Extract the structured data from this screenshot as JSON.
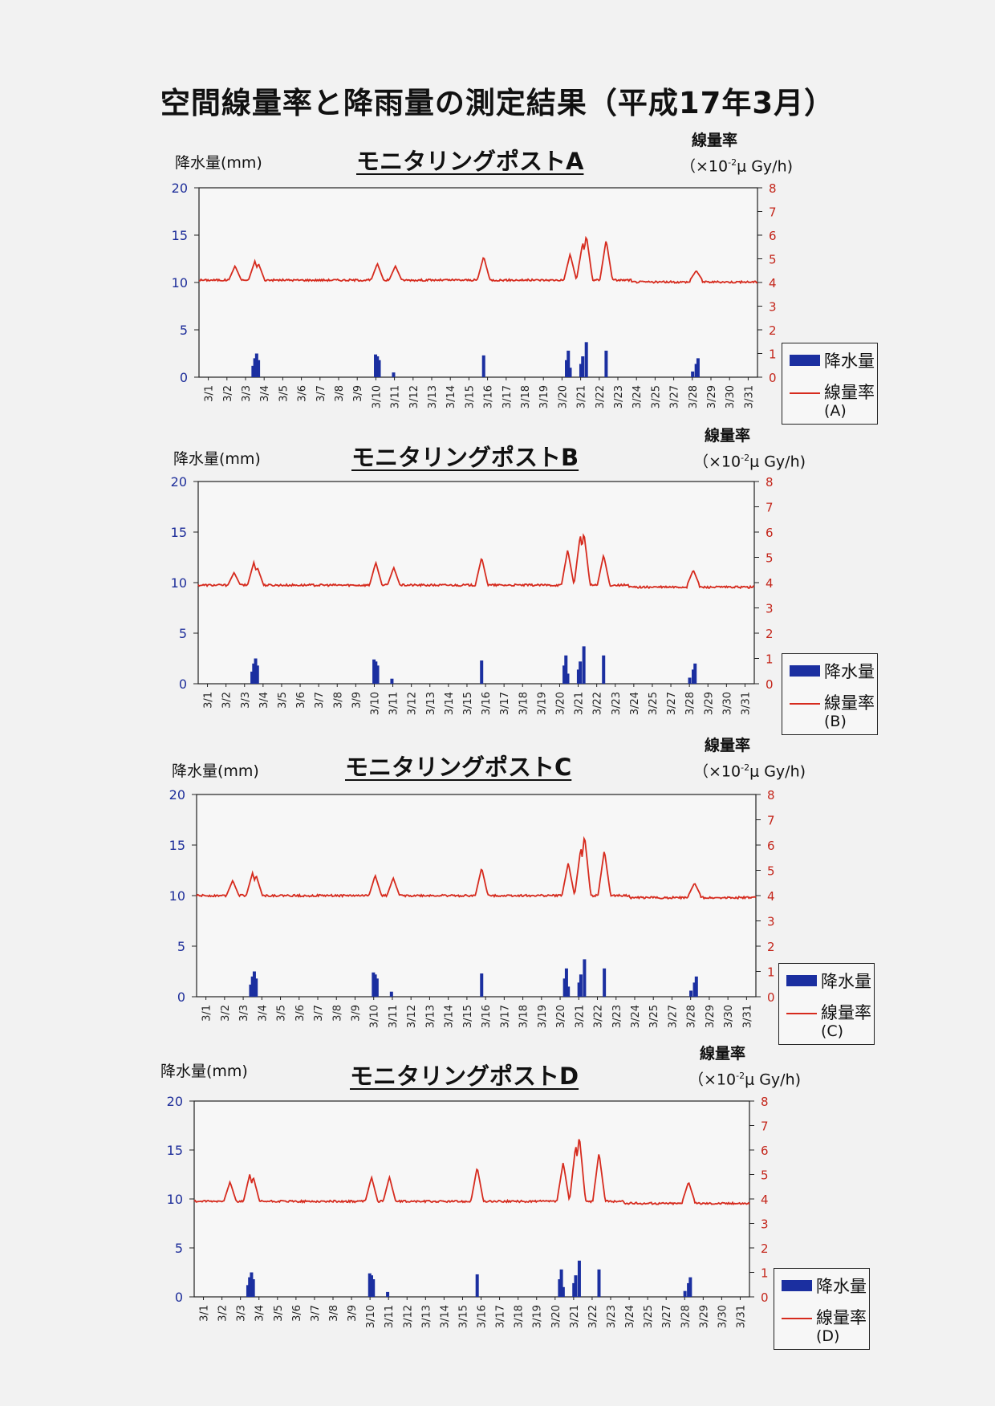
{
  "title": "空間線量率と降雨量の測定結果（平成17年3月）",
  "legend": {
    "rain_label": "降水量",
    "dose_label": "線量率"
  },
  "axes": {
    "left_label": "降水量(mm)",
    "right_label_1": "線量率",
    "right_label_2": "（×10",
    "right_label_exp": "-2",
    "right_label_3": "μ Gy/h)"
  },
  "colors": {
    "rain": "#1b2fa0",
    "dose": "#d62b1e",
    "left_ticks": "#1e2e9a",
    "right_ticks": "#c4261b"
  },
  "chart_data": [
    {
      "type": "bar+line",
      "title": "モニタリングポストA",
      "legend_post": "(A)",
      "x_categories": [
        "3/1",
        "3/2",
        "3/3",
        "3/4",
        "3/5",
        "3/6",
        "3/7",
        "3/8",
        "3/9",
        "3/10",
        "3/11",
        "3/12",
        "3/13",
        "3/14",
        "3/15",
        "3/16",
        "3/17",
        "3/18",
        "3/19",
        "3/20",
        "3/21",
        "3/22",
        "3/23",
        "3/24",
        "3/25",
        "3/27",
        "3/28",
        "3/29",
        "3/30",
        "3/31"
      ],
      "left_axis": {
        "label": "降水量(mm)",
        "ylim": [
          0,
          20
        ],
        "ticks": [
          0,
          5,
          10,
          15,
          20
        ]
      },
      "right_axis": {
        "label": "線量率（×10-2 μ Gy/h)",
        "ylim": [
          0,
          8
        ],
        "ticks": [
          0,
          1,
          2,
          3,
          4,
          5,
          6,
          7,
          8
        ]
      },
      "dose_baseline": 4.1,
      "dose_peaks": [
        [
          2.0,
          4.7
        ],
        [
          3.1,
          4.9
        ],
        [
          3.3,
          4.8
        ],
        [
          9.9,
          4.8
        ],
        [
          10.9,
          4.7
        ],
        [
          15.8,
          5.1
        ],
        [
          20.6,
          5.2
        ],
        [
          21.3,
          5.7
        ],
        [
          21.5,
          6.0
        ],
        [
          22.6,
          5.8
        ],
        [
          27.6,
          4.5
        ]
      ],
      "rain": [
        [
          3.0,
          1.2
        ],
        [
          3.1,
          2.0
        ],
        [
          3.2,
          2.5
        ],
        [
          3.3,
          1.8
        ],
        [
          9.8,
          2.4
        ],
        [
          9.9,
          2.2
        ],
        [
          10.0,
          1.8
        ],
        [
          10.8,
          0.5
        ],
        [
          15.8,
          2.3
        ],
        [
          20.4,
          1.8
        ],
        [
          20.5,
          2.8
        ],
        [
          20.6,
          1.0
        ],
        [
          21.2,
          1.4
        ],
        [
          21.3,
          2.2
        ],
        [
          21.5,
          3.7
        ],
        [
          22.6,
          2.8
        ],
        [
          27.4,
          0.6
        ],
        [
          27.6,
          1.4
        ],
        [
          27.7,
          2.0
        ]
      ]
    },
    {
      "type": "bar+line",
      "title": "モニタリングポストB",
      "legend_post": "(B)",
      "x_categories": [
        "3/1",
        "3/2",
        "3/3",
        "3/4",
        "3/5",
        "3/6",
        "3/7",
        "3/8",
        "3/9",
        "3/10",
        "3/11",
        "3/12",
        "3/13",
        "3/14",
        "3/15",
        "3/16",
        "3/17",
        "3/18",
        "3/19",
        "3/20",
        "3/21",
        "3/22",
        "3/23",
        "3/24",
        "3/25",
        "3/27",
        "3/28",
        "3/29",
        "3/30",
        "3/31"
      ],
      "left_axis": {
        "label": "降水量(mm)",
        "ylim": [
          0,
          20
        ],
        "ticks": [
          0,
          5,
          10,
          15,
          20
        ]
      },
      "right_axis": {
        "label": "線量率（×10-2 μ Gy/h)",
        "ylim": [
          0,
          8
        ],
        "ticks": [
          0,
          1,
          2,
          3,
          4,
          5,
          6,
          7,
          8
        ]
      },
      "dose_baseline": 3.9,
      "dose_peaks": [
        [
          2.0,
          4.4
        ],
        [
          3.1,
          4.8
        ],
        [
          3.3,
          4.6
        ],
        [
          9.9,
          4.8
        ],
        [
          10.9,
          4.6
        ],
        [
          15.8,
          5.0
        ],
        [
          20.6,
          5.3
        ],
        [
          21.3,
          5.9
        ],
        [
          21.5,
          6.0
        ],
        [
          22.6,
          5.1
        ],
        [
          27.6,
          4.5
        ]
      ],
      "rain": [
        [
          3.0,
          1.2
        ],
        [
          3.1,
          2.0
        ],
        [
          3.2,
          2.5
        ],
        [
          3.3,
          1.8
        ],
        [
          9.8,
          2.4
        ],
        [
          9.9,
          2.2
        ],
        [
          10.0,
          1.8
        ],
        [
          10.8,
          0.5
        ],
        [
          15.8,
          2.3
        ],
        [
          20.4,
          1.8
        ],
        [
          20.5,
          2.8
        ],
        [
          20.6,
          1.0
        ],
        [
          21.2,
          1.4
        ],
        [
          21.3,
          2.2
        ],
        [
          21.5,
          3.7
        ],
        [
          22.6,
          2.8
        ],
        [
          27.4,
          0.6
        ],
        [
          27.6,
          1.4
        ],
        [
          27.7,
          2.0
        ]
      ]
    },
    {
      "type": "bar+line",
      "title": "モニタリングポストC",
      "legend_post": "(C)",
      "x_categories": [
        "3/1",
        "3/2",
        "3/3",
        "3/4",
        "3/5",
        "3/6",
        "3/7",
        "3/8",
        "3/9",
        "3/10",
        "3/11",
        "3/12",
        "3/13",
        "3/14",
        "3/15",
        "3/16",
        "3/17",
        "3/18",
        "3/19",
        "3/20",
        "3/21",
        "3/22",
        "3/23",
        "3/24",
        "3/25",
        "3/27",
        "3/28",
        "3/29",
        "3/30",
        "3/31"
      ],
      "left_axis": {
        "label": "降水量(mm)",
        "ylim": [
          0,
          20
        ],
        "ticks": [
          0,
          5,
          10,
          15,
          20
        ]
      },
      "right_axis": {
        "label": "線量率（×10-2 μ Gy/h)",
        "ylim": [
          0,
          8
        ],
        "ticks": [
          0,
          1,
          2,
          3,
          4,
          5,
          6,
          7,
          8
        ]
      },
      "dose_baseline": 4.0,
      "dose_peaks": [
        [
          2.0,
          4.6
        ],
        [
          3.1,
          4.9
        ],
        [
          3.3,
          4.8
        ],
        [
          9.9,
          4.8
        ],
        [
          10.9,
          4.7
        ],
        [
          15.8,
          5.1
        ],
        [
          20.6,
          5.3
        ],
        [
          21.3,
          5.9
        ],
        [
          21.5,
          6.4
        ],
        [
          22.6,
          5.8
        ],
        [
          27.6,
          4.5
        ]
      ],
      "rain": [
        [
          3.0,
          1.2
        ],
        [
          3.1,
          2.0
        ],
        [
          3.2,
          2.5
        ],
        [
          3.3,
          1.8
        ],
        [
          9.8,
          2.4
        ],
        [
          9.9,
          2.2
        ],
        [
          10.0,
          1.8
        ],
        [
          10.8,
          0.5
        ],
        [
          15.8,
          2.3
        ],
        [
          20.4,
          1.8
        ],
        [
          20.5,
          2.8
        ],
        [
          20.6,
          1.0
        ],
        [
          21.2,
          1.4
        ],
        [
          21.3,
          2.2
        ],
        [
          21.5,
          3.7
        ],
        [
          22.6,
          2.8
        ],
        [
          27.4,
          0.6
        ],
        [
          27.6,
          1.4
        ],
        [
          27.7,
          2.0
        ]
      ]
    },
    {
      "type": "bar+line",
      "title": "モニタリングポストD",
      "legend_post": "(D)",
      "x_categories": [
        "3/1",
        "3/2",
        "3/3",
        "3/4",
        "3/5",
        "3/6",
        "3/7",
        "3/8",
        "3/9",
        "3/10",
        "3/11",
        "3/12",
        "3/13",
        "3/14",
        "3/15",
        "3/16",
        "3/17",
        "3/18",
        "3/19",
        "3/20",
        "3/21",
        "3/22",
        "3/23",
        "3/24",
        "3/25",
        "3/27",
        "3/28",
        "3/29",
        "3/30",
        "3/31"
      ],
      "left_axis": {
        "label": "降水量(mm)",
        "ylim": [
          0,
          20
        ],
        "ticks": [
          0,
          5,
          10,
          15,
          20
        ]
      },
      "right_axis": {
        "label": "線量率（×10-2 μ Gy/h)",
        "ylim": [
          0,
          8
        ],
        "ticks": [
          0,
          1,
          2,
          3,
          4,
          5,
          6,
          7,
          8
        ]
      },
      "dose_baseline": 3.9,
      "dose_peaks": [
        [
          2.0,
          4.7
        ],
        [
          3.1,
          5.0
        ],
        [
          3.3,
          4.9
        ],
        [
          9.9,
          4.9
        ],
        [
          10.9,
          4.9
        ],
        [
          15.8,
          5.3
        ],
        [
          20.6,
          5.5
        ],
        [
          21.3,
          6.2
        ],
        [
          21.5,
          6.6
        ],
        [
          22.6,
          5.9
        ],
        [
          27.6,
          4.7
        ]
      ],
      "rain": [
        [
          3.0,
          1.2
        ],
        [
          3.1,
          2.0
        ],
        [
          3.2,
          2.5
        ],
        [
          3.3,
          1.8
        ],
        [
          9.8,
          2.4
        ],
        [
          9.9,
          2.2
        ],
        [
          10.0,
          1.8
        ],
        [
          10.8,
          0.5
        ],
        [
          15.8,
          2.3
        ],
        [
          20.4,
          1.8
        ],
        [
          20.5,
          2.8
        ],
        [
          20.6,
          1.0
        ],
        [
          21.2,
          1.4
        ],
        [
          21.3,
          2.2
        ],
        [
          21.5,
          3.7
        ],
        [
          22.6,
          2.8
        ],
        [
          27.4,
          0.6
        ],
        [
          27.6,
          1.4
        ],
        [
          27.7,
          2.0
        ]
      ]
    }
  ]
}
